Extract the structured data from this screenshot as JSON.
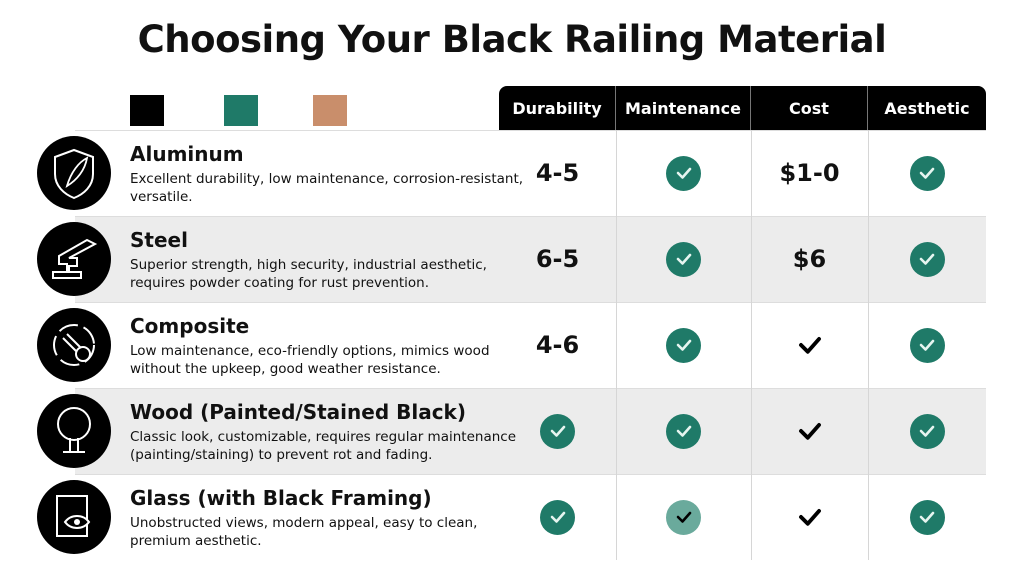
{
  "title": "Choosing Your Black Railing Material",
  "swatches": [
    "#000000",
    "#1f7a68",
    "#c98e6b"
  ],
  "columns": [
    "Durability",
    "Maintenance",
    "Cost",
    "Aesthetic"
  ],
  "rows": [
    {
      "name": "Aluminum",
      "icon": "shield-feather-icon",
      "desc": "Excellent durability, low maintenance, corrosion-resistant, versatile.",
      "cells": [
        {
          "type": "text",
          "value": "4-5"
        },
        {
          "type": "check"
        },
        {
          "type": "text",
          "value": "$1-0"
        },
        {
          "type": "check"
        }
      ]
    },
    {
      "name": "Steel",
      "icon": "i-beam-icon",
      "desc": "Superior strength, high security, industrial aesthetic, requires powder coating for rust prevention.",
      "cells": [
        {
          "type": "text",
          "value": "6-5"
        },
        {
          "type": "check"
        },
        {
          "type": "text",
          "value": "$6"
        },
        {
          "type": "check"
        }
      ]
    },
    {
      "name": "Composite",
      "icon": "recycle-gear-icon",
      "desc": "Low maintenance, eco-friendly options, mimics wood without the upkeep, good weather resistance.",
      "cells": [
        {
          "type": "text",
          "value": "4-6"
        },
        {
          "type": "check"
        },
        {
          "type": "plain-check"
        },
        {
          "type": "check"
        }
      ]
    },
    {
      "name": "Wood (Painted/Stained Black)",
      "icon": "tree-icon",
      "desc": "Classic look, customizable, requires regular maintenance (painting/staining) to prevent rot and fading.",
      "cells": [
        {
          "type": "check"
        },
        {
          "type": "check"
        },
        {
          "type": "plain-check"
        },
        {
          "type": "check"
        }
      ]
    },
    {
      "name": "Glass (with Black Framing)",
      "icon": "glass-eye-icon",
      "desc": "Unobstructed views, modern appeal, easy to clean, premium aesthetic.",
      "cells": [
        {
          "type": "check"
        },
        {
          "type": "light-check"
        },
        {
          "type": "plain-check"
        },
        {
          "type": "check"
        }
      ]
    }
  ]
}
